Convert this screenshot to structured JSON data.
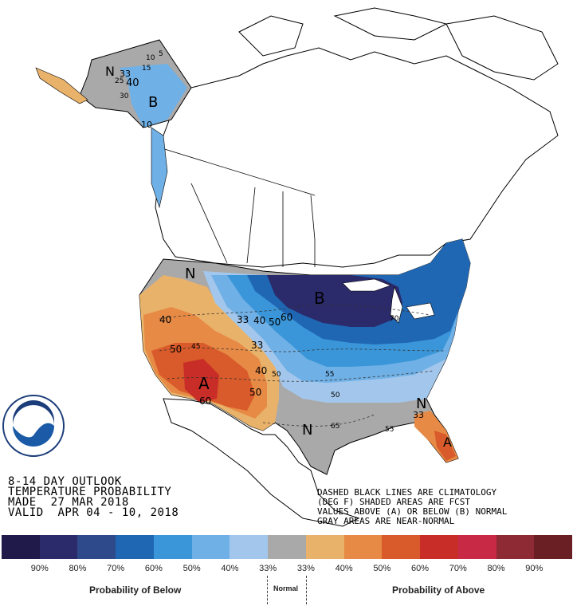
{
  "title": {
    "line1": "8-14 DAY OUTLOOK",
    "line2": "TEMPERATURE PROBABILITY",
    "line3": "MADE  27 MAR 2018",
    "line4": "VALID  APR 04 - 10, 2018"
  },
  "notes": {
    "line1": "DASHED BLACK LINES ARE CLIMATOLOGY",
    "line2": "(DEG F) SHADED AREAS ARE FCST",
    "line3": "VALUES ABOVE (A) OR BELOW (B) NORMAL",
    "line4": "GRAY AREAS ARE NEAR-NORMAL"
  },
  "logo": {
    "text": "NOAA",
    "ring_text": "NATIONAL OCEANIC AND ATMOSPHERIC ADMINISTRATION · U.S. DEPARTMENT OF COMMERCE"
  },
  "legend": {
    "colors": [
      "#1f1a4a",
      "#2b2a6b",
      "#2e4a8a",
      "#1f66b3",
      "#3a96d8",
      "#6fb0e6",
      "#a3c7ec",
      "#a9a9a9",
      "#e9b26a",
      "#e68a45",
      "#d95a2a",
      "#c92d28",
      "#c82a45",
      "#8e2a33",
      "#6a1f24"
    ],
    "labels": [
      "90%",
      "80%",
      "70%",
      "60%",
      "50%",
      "40%",
      "33%",
      "33%",
      "40%",
      "50%",
      "60%",
      "70%",
      "80%",
      "90%"
    ],
    "below_label": "Probability of Below",
    "normal_label": "Normal",
    "above_label": "Probability of Above"
  },
  "map_labels": {
    "alaska_n": "N",
    "alaska_b": "B",
    "west_n": "N",
    "central_b": "B",
    "southwest_a": "A",
    "south_n": "N",
    "southeast_n": "N",
    "florida_a": "A",
    "contours": [
      "40",
      "50",
      "45",
      "33",
      "40",
      "50",
      "60",
      "33",
      "40",
      "50",
      "60",
      "50",
      "55",
      "50",
      "65",
      "55",
      "33",
      "70",
      "5",
      "10",
      "15",
      "25",
      "33",
      "40",
      "30",
      "10"
    ]
  }
}
